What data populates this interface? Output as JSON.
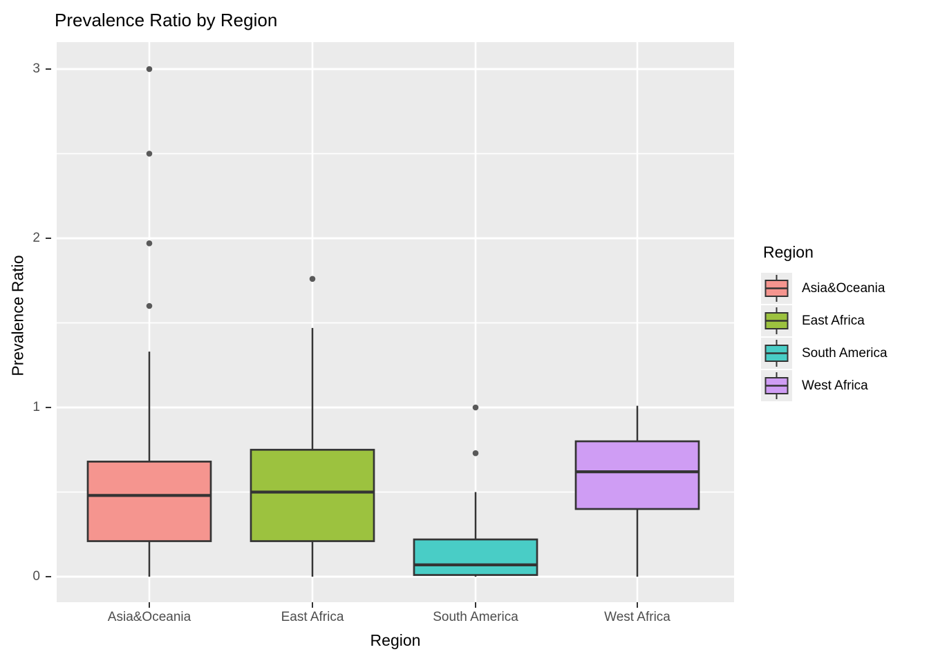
{
  "title": "Prevalence Ratio by Region",
  "colors": {
    "panel_background": "#EBEBEB",
    "gridline": "#FFFFFF",
    "box_outline": "#343434",
    "outlier_point": "#595959",
    "tick_mark": "#333333",
    "tick_label": "#4D4D4D",
    "text": "#000000",
    "legend_key_background": "#ECECEC"
  },
  "chart_data": {
    "type": "boxplot",
    "title": "Prevalence Ratio by Region",
    "xlabel": "Region",
    "ylabel": "Prevalence Ratio",
    "categories": [
      "Asia&Oceania",
      "East Africa",
      "South America",
      "West Africa"
    ],
    "y_ticks": [
      0,
      1,
      2,
      3
    ],
    "y_tick_labels": [
      "0",
      "1",
      "2",
      "3"
    ],
    "y_minor_ticks": [
      0.5,
      1.5,
      2.5
    ],
    "ylim": [
      -0.15,
      3.16
    ],
    "grid": true,
    "legend": {
      "title": "Region",
      "position": "right",
      "entries": [
        "Asia&Oceania",
        "East Africa",
        "South America",
        "West Africa"
      ]
    },
    "series": [
      {
        "name": "Asia&Oceania",
        "color": "#F5958F",
        "lower_whisker": 0.0,
        "q1": 0.21,
        "median": 0.48,
        "q3": 0.68,
        "upper_whisker": 1.33,
        "outliers": [
          1.6,
          1.97,
          2.5,
          3.0
        ]
      },
      {
        "name": "East Africa",
        "color": "#9CC23F",
        "lower_whisker": 0.0,
        "q1": 0.21,
        "median": 0.5,
        "q3": 0.75,
        "upper_whisker": 1.47,
        "outliers": [
          1.76
        ]
      },
      {
        "name": "South America",
        "color": "#49CDC6",
        "lower_whisker": 0.0,
        "q1": 0.01,
        "median": 0.07,
        "q3": 0.22,
        "upper_whisker": 0.5,
        "outliers": [
          0.73,
          1.0
        ]
      },
      {
        "name": "West Africa",
        "color": "#CF9DF4",
        "lower_whisker": 0.0,
        "q1": 0.4,
        "median": 0.62,
        "q3": 0.8,
        "upper_whisker": 1.01,
        "outliers": []
      }
    ]
  }
}
